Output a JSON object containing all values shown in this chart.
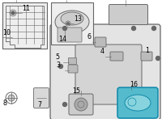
{
  "bg_color": "#ffffff",
  "lc": "#666666",
  "hc": "#55bbcc",
  "hc_inner": "#88d4de",
  "hc_edge": "#1188aa"
}
